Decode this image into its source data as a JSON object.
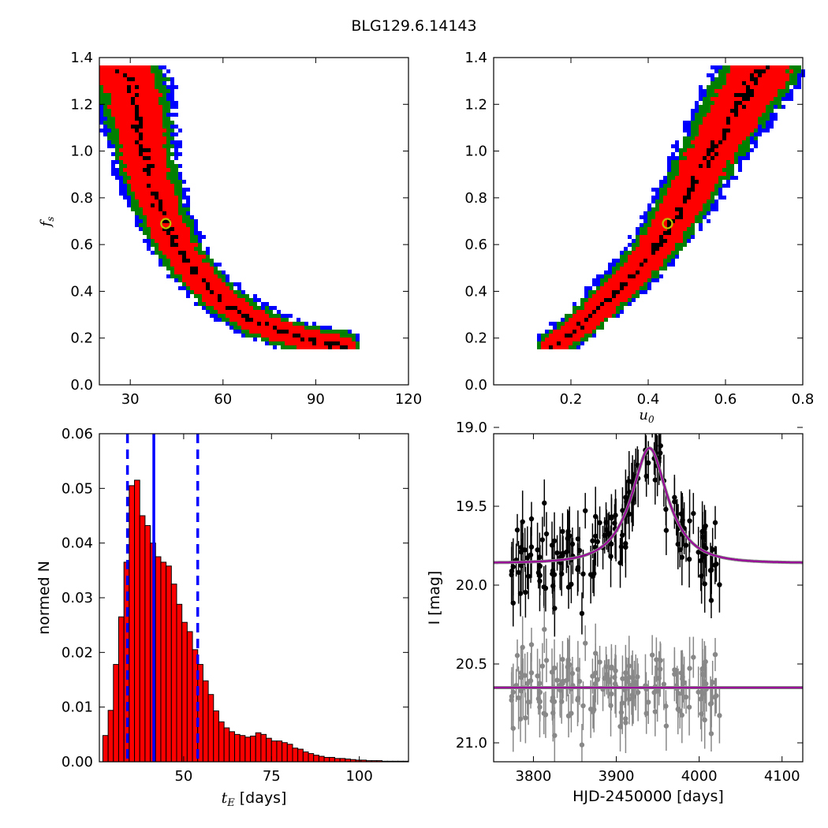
{
  "figure_title": "BLG129.6.14143",
  "chart_data": [
    {
      "id": "te_fs",
      "type": "heatmap",
      "description": "2D posterior density of t_E vs f_s; contour levels black (1σ), red (2σ), green (3σ), blue (outer)",
      "xlabel": "",
      "ylabel": "f_s",
      "xlim": [
        20,
        120
      ],
      "ylim": [
        0.0,
        1.4
      ],
      "xticks": [
        30,
        60,
        90,
        120
      ],
      "yticks": [
        0.0,
        0.2,
        0.4,
        0.6,
        0.8,
        1.0,
        1.2,
        1.4
      ],
      "ridge": [
        [
          27,
          1.35
        ],
        [
          31,
          1.25
        ],
        [
          33,
          1.1
        ],
        [
          35,
          0.95
        ],
        [
          37,
          0.85
        ],
        [
          39,
          0.78
        ],
        [
          41,
          0.7
        ],
        [
          44,
          0.62
        ],
        [
          48,
          0.53
        ],
        [
          53,
          0.45
        ],
        [
          58,
          0.38
        ],
        [
          64,
          0.32
        ],
        [
          70,
          0.27
        ],
        [
          76,
          0.24
        ],
        [
          82,
          0.21
        ],
        [
          88,
          0.19
        ],
        [
          95,
          0.17
        ],
        [
          100,
          0.16
        ]
      ],
      "best_fit": {
        "x": 41.5,
        "y": 0.69
      },
      "colors": {
        "c1": "#000000",
        "c2": "#ff0000",
        "c3": "#007f00",
        "c4": "#0000ff",
        "marker": "#bfbf00"
      }
    },
    {
      "id": "u0_fs",
      "type": "heatmap",
      "description": "2D posterior density of u0 vs f_s",
      "xlabel": "u_0",
      "ylabel": "",
      "xlim": [
        0.0,
        0.8
      ],
      "ylim": [
        0.0,
        1.4
      ],
      "xticks": [
        0.2,
        0.4,
        0.6,
        0.8
      ],
      "yticks": [
        0.0,
        0.2,
        0.4,
        0.6,
        0.8,
        1.0,
        1.2,
        1.4
      ],
      "ridge": [
        [
          0.15,
          0.16
        ],
        [
          0.2,
          0.22
        ],
        [
          0.25,
          0.29
        ],
        [
          0.3,
          0.37
        ],
        [
          0.35,
          0.45
        ],
        [
          0.4,
          0.54
        ],
        [
          0.45,
          0.66
        ],
        [
          0.5,
          0.8
        ],
        [
          0.55,
          0.95
        ],
        [
          0.6,
          1.1
        ],
        [
          0.65,
          1.24
        ],
        [
          0.7,
          1.35
        ]
      ],
      "best_fit": {
        "x": 0.45,
        "y": 0.69
      },
      "colors": {
        "c1": "#000000",
        "c2": "#ff0000",
        "c3": "#007f00",
        "c4": "#0000ff",
        "marker": "#bfbf00"
      }
    },
    {
      "id": "te_hist",
      "type": "bar",
      "xlabel": "t_E [days]",
      "ylabel": "normed N",
      "xlim": [
        26,
        114
      ],
      "ylim": [
        0.0,
        0.06
      ],
      "xticks": [
        50,
        75,
        100
      ],
      "yticks": [
        0.0,
        0.01,
        0.02,
        0.03,
        0.04,
        0.05,
        0.06
      ],
      "bin_width": 1.5,
      "bin_start": 27,
      "values": [
        0.0048,
        0.0094,
        0.0178,
        0.0265,
        0.0365,
        0.0505,
        0.0515,
        0.045,
        0.0432,
        0.04,
        0.0375,
        0.0365,
        0.0358,
        0.0325,
        0.0288,
        0.0255,
        0.0238,
        0.0205,
        0.0178,
        0.0148,
        0.0123,
        0.0093,
        0.0073,
        0.0062,
        0.0055,
        0.005,
        0.0048,
        0.0045,
        0.0047,
        0.0053,
        0.005,
        0.0043,
        0.0038,
        0.0038,
        0.0035,
        0.0032,
        0.0025,
        0.0023,
        0.0018,
        0.0015,
        0.0012,
        0.001,
        0.0008,
        0.0008,
        0.0006,
        0.0006,
        0.0005,
        0.0004,
        0.0003,
        0.0003,
        0.0002,
        0.0002,
        0.0002,
        0.0001,
        0.0001,
        0.0001,
        0.0001,
        0.0001
      ],
      "median": 41.5,
      "lower": 34,
      "upper": 54,
      "bar_color": "#ff0000",
      "line_color": "#0000ff"
    },
    {
      "id": "lightcurve",
      "type": "scatter",
      "xlabel": "HJD-2450000 [days]",
      "ylabel": "I [mag]",
      "xlim": [
        3752,
        4125
      ],
      "ylim": [
        21.12,
        19.04
      ],
      "xticks": [
        3800,
        3900,
        4000,
        4100
      ],
      "yticks": [
        19.0,
        19.5,
        20.0,
        20.5,
        21.0
      ],
      "model": {
        "t0": 3940,
        "tE": 41.5,
        "u0": 0.45,
        "fs": 0.69,
        "base": 19.86,
        "color": "#9b009b"
      },
      "residual_offset": 20.65,
      "n_points": 160,
      "data_range": [
        3772,
        4026
      ],
      "colors": {
        "data": "#000000",
        "residuals": "#888888"
      }
    }
  ]
}
